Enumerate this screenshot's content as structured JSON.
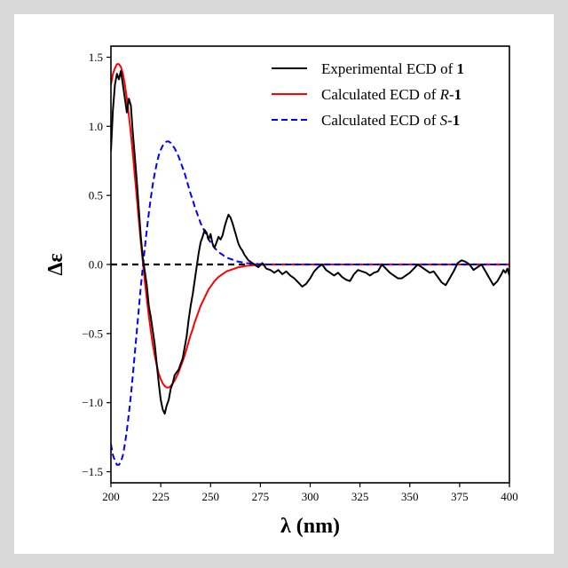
{
  "chart_data": {
    "type": "line",
    "xlabel": "λ (nm)",
    "ylabel": "Δε",
    "xlim": [
      200,
      400
    ],
    "ylim": [
      -1.58,
      1.58
    ],
    "x_ticks": [
      200,
      225,
      250,
      275,
      300,
      325,
      350,
      375,
      400
    ],
    "x_tick_labels": [
      "200",
      "225",
      "250",
      "275",
      "300",
      "325",
      "350",
      "375",
      "400"
    ],
    "y_ticks": [
      -1.5,
      -1.0,
      -0.5,
      0.0,
      0.5,
      1.0,
      1.5
    ],
    "y_tick_labels": [
      "−1.5",
      "−1.0",
      "−0.5",
      "0.0",
      "0.5",
      "1.0",
      "1.5"
    ],
    "grid": false,
    "legend_position": "top-right",
    "zero_line": {
      "y": 0,
      "style": "dashed",
      "color": "#000000"
    },
    "series": [
      {
        "name": "Experimental ECD of 1",
        "legend": {
          "prefix": "Experimental ECD of ",
          "italic": "",
          "bold": "1"
        },
        "color": "#000000",
        "dash": "solid",
        "x": [
          200,
          201,
          202,
          203,
          204,
          205,
          206,
          207,
          208,
          209,
          210,
          211,
          212,
          213,
          214,
          215,
          216,
          217,
          218,
          219,
          220,
          221,
          222,
          223,
          224,
          225,
          226,
          227,
          228,
          229,
          230,
          231,
          232,
          233,
          234,
          235,
          236,
          237,
          238,
          239,
          240,
          241,
          242,
          243,
          244,
          245,
          246,
          247,
          248,
          249,
          250,
          251,
          252,
          253,
          254,
          255,
          256,
          257,
          258,
          259,
          260,
          261,
          262,
          263,
          264,
          265,
          266,
          267,
          268,
          269,
          270,
          272,
          274,
          276,
          278,
          280,
          282,
          284,
          286,
          288,
          290,
          292,
          294,
          296,
          298,
          300,
          302,
          304,
          306,
          308,
          310,
          312,
          314,
          316,
          318,
          320,
          322,
          324,
          326,
          328,
          330,
          332,
          334,
          336,
          338,
          340,
          342,
          344,
          346,
          348,
          350,
          352,
          354,
          356,
          358,
          360,
          362,
          364,
          366,
          368,
          370,
          372,
          374,
          376,
          378,
          380,
          382,
          384,
          386,
          388,
          390,
          392,
          394,
          396,
          397,
          398,
          399,
          400
        ],
        "values": [
          0.82,
          1.12,
          1.3,
          1.38,
          1.34,
          1.4,
          1.3,
          1.2,
          1.1,
          1.2,
          1.15,
          0.95,
          0.78,
          0.6,
          0.4,
          0.2,
          0.05,
          -0.05,
          -0.15,
          -0.3,
          -0.38,
          -0.48,
          -0.58,
          -0.72,
          -0.86,
          -0.98,
          -1.05,
          -1.08,
          -1.02,
          -0.98,
          -0.9,
          -0.86,
          -0.8,
          -0.78,
          -0.76,
          -0.72,
          -0.68,
          -0.6,
          -0.52,
          -0.4,
          -0.3,
          -0.22,
          -0.12,
          -0.02,
          0.08,
          0.16,
          0.2,
          0.25,
          0.23,
          0.18,
          0.22,
          0.15,
          0.12,
          0.16,
          0.2,
          0.18,
          0.21,
          0.27,
          0.32,
          0.36,
          0.34,
          0.3,
          0.25,
          0.2,
          0.15,
          0.12,
          0.1,
          0.07,
          0.05,
          0.03,
          0.02,
          0.0,
          -0.02,
          0.01,
          -0.03,
          -0.04,
          -0.06,
          -0.04,
          -0.07,
          -0.05,
          -0.08,
          -0.1,
          -0.13,
          -0.16,
          -0.14,
          -0.1,
          -0.05,
          -0.02,
          0.0,
          -0.04,
          -0.06,
          -0.08,
          -0.06,
          -0.09,
          -0.11,
          -0.12,
          -0.07,
          -0.04,
          -0.05,
          -0.06,
          -0.08,
          -0.06,
          -0.05,
          0.0,
          -0.03,
          -0.06,
          -0.08,
          -0.1,
          -0.1,
          -0.08,
          -0.06,
          -0.03,
          0.0,
          -0.02,
          -0.04,
          -0.06,
          -0.05,
          -0.09,
          -0.13,
          -0.15,
          -0.1,
          -0.05,
          0.01,
          0.03,
          0.02,
          0.0,
          -0.04,
          -0.02,
          0.0,
          -0.05,
          -0.1,
          -0.15,
          -0.12,
          -0.07,
          -0.04,
          -0.06,
          -0.03,
          -0.08
        ]
      },
      {
        "name": "Calculated ECD of R-1",
        "legend": {
          "prefix": "Calculated ECD of ",
          "italic": "R",
          "bold": "1"
        },
        "color": "#ff0000",
        "dash": "solid",
        "x": [
          200,
          201,
          202,
          203,
          204,
          205,
          206,
          207,
          208,
          209,
          210,
          211,
          212,
          213,
          214,
          215,
          216,
          217,
          218,
          219,
          220,
          221,
          222,
          223,
          224,
          225,
          226,
          227,
          228,
          229,
          230,
          231,
          232,
          233,
          234,
          235,
          236,
          237,
          238,
          239,
          240,
          241,
          242,
          243,
          244,
          245,
          246,
          247,
          248,
          249,
          250,
          252,
          254,
          256,
          258,
          260,
          262,
          264,
          266,
          268,
          270,
          272,
          274,
          276,
          278,
          280,
          285,
          290,
          300,
          320,
          350,
          400
        ],
        "values": [
          1.3,
          1.38,
          1.42,
          1.45,
          1.45,
          1.43,
          1.38,
          1.3,
          1.2,
          1.08,
          0.95,
          0.8,
          0.64,
          0.48,
          0.32,
          0.16,
          0.02,
          -0.12,
          -0.25,
          -0.37,
          -0.48,
          -0.58,
          -0.66,
          -0.73,
          -0.79,
          -0.83,
          -0.86,
          -0.88,
          -0.89,
          -0.89,
          -0.88,
          -0.86,
          -0.84,
          -0.81,
          -0.78,
          -0.74,
          -0.7,
          -0.66,
          -0.61,
          -0.56,
          -0.51,
          -0.47,
          -0.42,
          -0.38,
          -0.34,
          -0.3,
          -0.27,
          -0.24,
          -0.21,
          -0.18,
          -0.16,
          -0.12,
          -0.09,
          -0.07,
          -0.05,
          -0.04,
          -0.03,
          -0.02,
          -0.015,
          -0.01,
          -0.007,
          -0.005,
          -0.003,
          -0.002,
          -0.001,
          0.0,
          0.0,
          0.0,
          0.0,
          0.0,
          0.0,
          0.0
        ]
      },
      {
        "name": "Calculated ECD of S-1",
        "legend": {
          "prefix": "Calculated ECD of ",
          "italic": "S",
          "bold": "1"
        },
        "color": "#0000ff",
        "dash": "dashed",
        "x": [
          200,
          201,
          202,
          203,
          204,
          205,
          206,
          207,
          208,
          209,
          210,
          211,
          212,
          213,
          214,
          215,
          216,
          217,
          218,
          219,
          220,
          221,
          222,
          223,
          224,
          225,
          226,
          227,
          228,
          229,
          230,
          231,
          232,
          233,
          234,
          235,
          236,
          237,
          238,
          239,
          240,
          241,
          242,
          243,
          244,
          245,
          246,
          247,
          248,
          249,
          250,
          252,
          254,
          256,
          258,
          260,
          262,
          264,
          266,
          268,
          270,
          272,
          274,
          276,
          278,
          280,
          285,
          290,
          300,
          320,
          350,
          400
        ],
        "values": [
          -1.3,
          -1.38,
          -1.42,
          -1.45,
          -1.45,
          -1.43,
          -1.38,
          -1.3,
          -1.2,
          -1.08,
          -0.95,
          -0.8,
          -0.64,
          -0.48,
          -0.32,
          -0.16,
          -0.02,
          0.12,
          0.25,
          0.37,
          0.48,
          0.58,
          0.66,
          0.73,
          0.79,
          0.83,
          0.86,
          0.88,
          0.89,
          0.89,
          0.88,
          0.86,
          0.84,
          0.81,
          0.78,
          0.74,
          0.7,
          0.66,
          0.61,
          0.56,
          0.51,
          0.47,
          0.42,
          0.38,
          0.34,
          0.3,
          0.27,
          0.24,
          0.21,
          0.18,
          0.16,
          0.12,
          0.09,
          0.07,
          0.05,
          0.04,
          0.03,
          0.02,
          0.015,
          0.01,
          0.007,
          0.005,
          0.003,
          0.002,
          0.001,
          0.0,
          0.0,
          0.0,
          0.0,
          0.0,
          0.0,
          0.0
        ]
      }
    ]
  }
}
